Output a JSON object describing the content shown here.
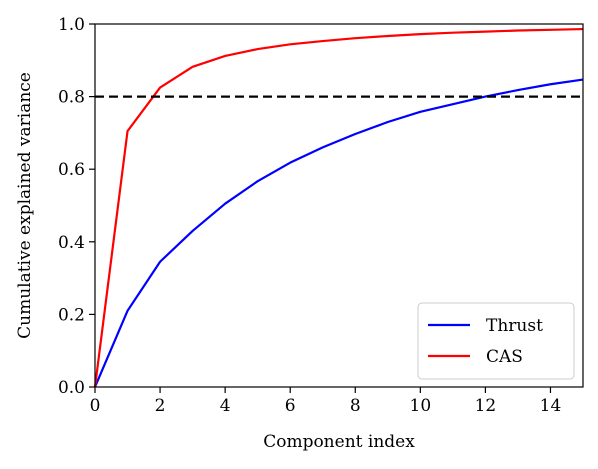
{
  "chart_data": {
    "type": "line",
    "title": "",
    "xlabel": "Component index",
    "ylabel": "Cumulative explained variance",
    "xlim": [
      0,
      15
    ],
    "ylim": [
      0.0,
      1.0
    ],
    "grid": false,
    "x_ticks": [
      0,
      2,
      4,
      6,
      8,
      10,
      12,
      14
    ],
    "y_ticks": [
      "0.0",
      "0.2",
      "0.4",
      "0.6",
      "0.8",
      "1.0"
    ],
    "reference_line": {
      "y": 0.8,
      "style": "dashed",
      "color": "#000000"
    },
    "legend": {
      "placement": "lower-right"
    },
    "series": [
      {
        "name": "Thrust",
        "color": "#0000ff",
        "x": [
          0,
          1,
          2,
          3,
          4,
          5,
          6,
          7,
          8,
          9,
          10,
          11,
          12,
          13,
          14,
          15
        ],
        "y": [
          0.0,
          0.21,
          0.345,
          0.43,
          0.505,
          0.567,
          0.618,
          0.66,
          0.697,
          0.73,
          0.758,
          0.779,
          0.8,
          0.818,
          0.834,
          0.847
        ]
      },
      {
        "name": "CAS",
        "color": "#ff0000",
        "x": [
          0,
          1,
          2,
          3,
          4,
          5,
          6,
          7,
          8,
          9,
          10,
          11,
          12,
          13,
          14,
          15
        ],
        "y": [
          0.0,
          0.705,
          0.825,
          0.882,
          0.912,
          0.931,
          0.944,
          0.953,
          0.961,
          0.967,
          0.972,
          0.976,
          0.979,
          0.982,
          0.984,
          0.986
        ]
      }
    ]
  }
}
